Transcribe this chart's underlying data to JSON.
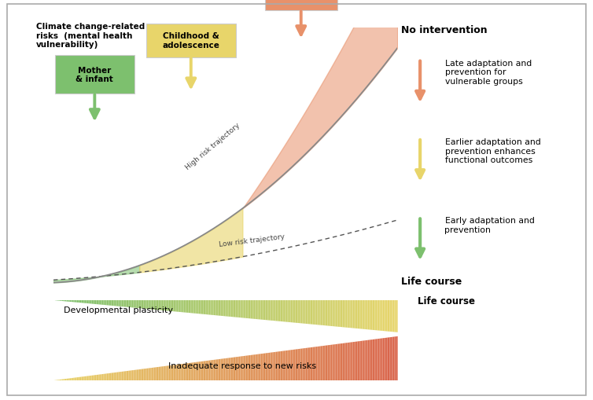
{
  "fig_width": 7.54,
  "fig_height": 5.1,
  "bg_color": "#ffffff",
  "title_text": "Climate change-related\nrisks  (mental health\nvulnerability)",
  "xlabel_text": "Life course",
  "low_traj_label": "Low risk trajectory",
  "high_traj_label": "High risk trajectory",
  "dev_plasticity_label": "Developmental plasticity",
  "inadequate_label": "Inadequate response to new risks",
  "no_intervention_label": "No intervention",
  "green_color": "#7DC06E",
  "yellow_color": "#E8D56A",
  "orange_color": "#E8916A",
  "legend_items": [
    {
      "color": "#E8916A",
      "text": "Late adaptation and\nprevention for\nvulnerable groups"
    },
    {
      "color": "#E8D56A",
      "text": "Earlier adaptation and\nprevention enhances\nfunctional outcomes"
    },
    {
      "color": "#7DC06E",
      "text": "Early adaptation and\nprevention"
    }
  ]
}
